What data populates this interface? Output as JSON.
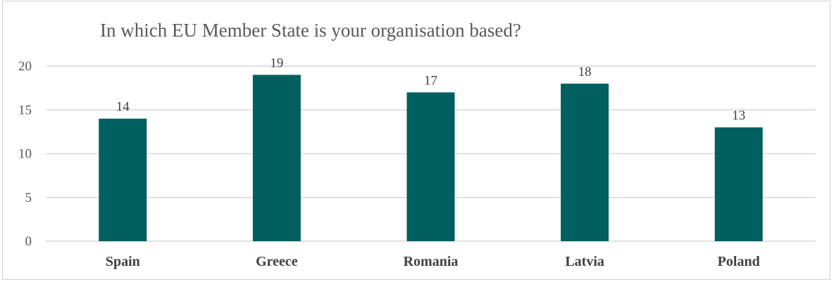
{
  "chart_data": {
    "type": "bar",
    "title": "In which EU Member State is your organisation based?",
    "categories": [
      "Spain",
      "Greece",
      "Romania",
      "Latvia",
      "Poland"
    ],
    "values": [
      14,
      19,
      17,
      18,
      13
    ],
    "data_labels": [
      "14",
      "19",
      "17",
      "18",
      "13"
    ],
    "yticks": [
      0,
      5,
      10,
      15,
      20
    ],
    "ylim": [
      0,
      20
    ],
    "xlabel": "",
    "ylabel": "",
    "grid": true,
    "legend": "none",
    "bar_color": "#006060",
    "grid_color": "#d9d9d9"
  }
}
